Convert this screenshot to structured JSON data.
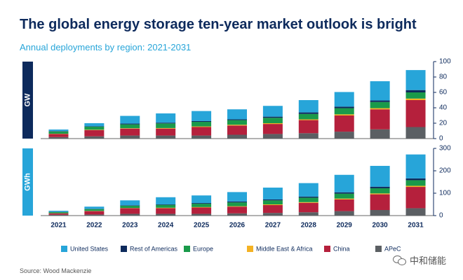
{
  "header": {
    "title": "The global energy storage ten-year market outlook is bright",
    "subtitle": "Annual deployments by region: 2021-2031"
  },
  "footer": {
    "source": "Source: Wood Mackenzie",
    "watermark": "中和储能"
  },
  "chart_data": [
    {
      "type": "bar",
      "stacked": true,
      "unit_label": "GW",
      "categories": [
        "2021",
        "2022",
        "2023",
        "2024",
        "2025",
        "2026",
        "2027",
        "2028",
        "2029",
        "2030",
        "2031"
      ],
      "ylim": [
        0,
        100
      ],
      "yticks": [
        0,
        20,
        40,
        60,
        80,
        100
      ],
      "grid": false,
      "legend_position": "bottom",
      "series": [
        {
          "name": "APeC",
          "color": "#5b5f63",
          "values": [
            2,
            3,
            4,
            4,
            4,
            5,
            6,
            7,
            9,
            12,
            15
          ]
        },
        {
          "name": "China",
          "color": "#b5203c",
          "values": [
            4,
            8,
            9,
            9,
            11,
            12,
            13,
            17,
            21,
            26,
            35
          ]
        },
        {
          "name": "Middle East & Africa",
          "color": "#f4b223",
          "values": [
            0.3,
            0.5,
            0.5,
            0.7,
            0.8,
            1,
            1,
            1,
            1.5,
            1.5,
            2
          ]
        },
        {
          "name": "Europe",
          "color": "#1a9a4a",
          "values": [
            3,
            4,
            5,
            6,
            6,
            6,
            7,
            7,
            8,
            8,
            8
          ]
        },
        {
          "name": "Rest of Americas",
          "color": "#0d2a5c",
          "values": [
            0.5,
            0.5,
            1,
            1,
            1,
            1,
            1.5,
            2,
            2,
            2,
            3
          ]
        },
        {
          "name": "United States",
          "color": "#27a5d9",
          "values": [
            2,
            4,
            10,
            12,
            13,
            13,
            14,
            16,
            19,
            25,
            26
          ]
        }
      ]
    },
    {
      "type": "bar",
      "stacked": true,
      "unit_label": "GWh",
      "categories": [
        "2021",
        "2022",
        "2023",
        "2024",
        "2025",
        "2026",
        "2027",
        "2028",
        "2029",
        "2030",
        "2031"
      ],
      "ylim": [
        0,
        300
      ],
      "yticks": [
        0,
        100,
        200,
        300
      ],
      "grid": false,
      "legend_position": "bottom",
      "series": [
        {
          "name": "APeC",
          "color": "#5b5f63",
          "values": [
            4,
            5,
            8,
            8,
            8,
            10,
            12,
            15,
            20,
            25,
            33
          ]
        },
        {
          "name": "China",
          "color": "#b5203c",
          "values": [
            6,
            15,
            25,
            25,
            28,
            30,
            35,
            42,
            52,
            70,
            95
          ]
        },
        {
          "name": "Middle East & Africa",
          "color": "#f4b223",
          "values": [
            0.5,
            1,
            1,
            2,
            2,
            2,
            3,
            3,
            4,
            4,
            5
          ]
        },
        {
          "name": "Europe",
          "color": "#1a9a4a",
          "values": [
            5,
            8,
            10,
            13,
            15,
            17,
            18,
            20,
            22,
            23,
            25
          ]
        },
        {
          "name": "Rest of Americas",
          "color": "#0d2a5c",
          "values": [
            1,
            1,
            2,
            2,
            3,
            4,
            4,
            5,
            6,
            7,
            8
          ]
        },
        {
          "name": "United States",
          "color": "#27a5d9",
          "values": [
            5,
            10,
            22,
            32,
            34,
            42,
            53,
            60,
            78,
            93,
            107
          ]
        }
      ]
    }
  ],
  "legend": {
    "items": [
      {
        "name": "United States",
        "color": "#27a5d9"
      },
      {
        "name": "Rest of Americas",
        "color": "#0d2a5c"
      },
      {
        "name": "Europe",
        "color": "#1a9a4a"
      },
      {
        "name": "Middle East & Africa",
        "color": "#f4b223"
      },
      {
        "name": "China",
        "color": "#b5203c"
      },
      {
        "name": "APeC",
        "color": "#5b5f63"
      }
    ]
  }
}
